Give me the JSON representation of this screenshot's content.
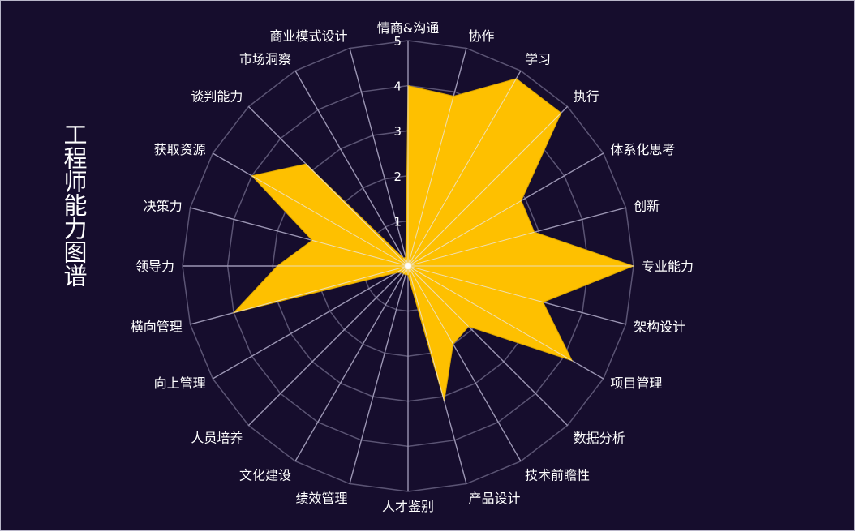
{
  "chart_data": {
    "type": "radar",
    "title": "工程师能力图谱",
    "rlim": [
      0,
      5
    ],
    "ticks": [
      "1",
      "2",
      "3",
      "4",
      "5"
    ],
    "categories": [
      "情商&沟通",
      "协作",
      "学习",
      "执行",
      "体系化思考",
      "创新",
      "专业能力",
      "架构设计",
      "项目管理",
      "数据分析",
      "技术前瞻性",
      "产品设计",
      "人才鉴别",
      "绩效管理",
      "文化建设",
      "人员培养",
      "向上管理",
      "横向管理",
      "领导力",
      "决策力",
      "获取资源",
      "谈判能力",
      "市场洞察",
      "商业模式设计"
    ],
    "values": [
      4,
      3.9,
      4.8,
      4.8,
      2.9,
      2.9,
      5,
      3.1,
      4.2,
      1.9,
      2.0,
      3.1,
      0.2,
      0.2,
      0.2,
      0.2,
      0.3,
      4.0,
      2.9,
      2.2,
      4.0,
      3.2,
      0.2,
      0.2
    ],
    "grid": true,
    "colors": {
      "fill": "#fec000",
      "grid": "#5b5474",
      "spoke_inner": "#e9e9f0",
      "background": "#160d2d"
    }
  }
}
